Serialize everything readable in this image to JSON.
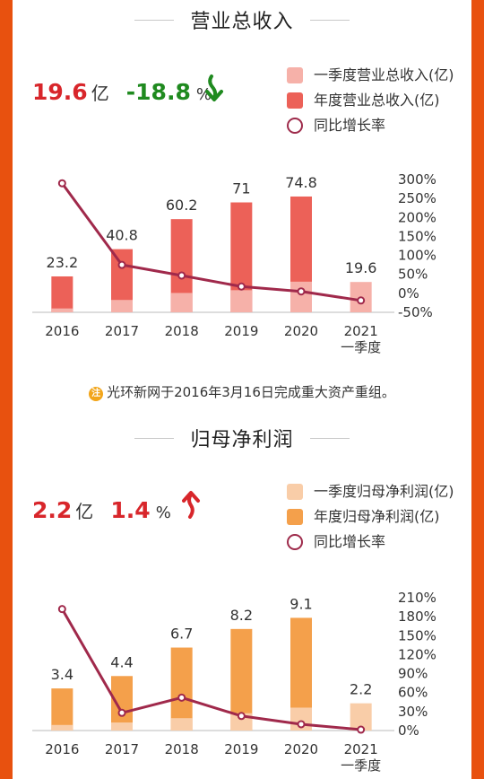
{
  "revenue": {
    "title": "营业总收入",
    "kpi": {
      "value": "19.6",
      "unit": "亿",
      "change": "-18.8",
      "pct": "%",
      "direction": "down"
    },
    "legend": [
      "一季度营业总收入(亿)",
      "年度营业总收入(亿)",
      "同比增长率"
    ],
    "colors": {
      "quarter": "#f6b1a9",
      "annual": "#ec6158",
      "line": "#a0294b",
      "kpi_value": "#d8262b",
      "kpi_change": "#1f8a1f"
    },
    "note": "光环新网于2016年3月16日完成重大资产重组。",
    "note_badge": "注"
  },
  "profit": {
    "title": "归母净利润",
    "kpi": {
      "value": "2.2",
      "unit": "亿",
      "change": "1.4",
      "pct": "%",
      "direction": "up"
    },
    "legend": [
      "一季度归母净利润(亿)",
      "年度归母净利润(亿)",
      "同比增长率"
    ],
    "colors": {
      "quarter": "#f9cda8",
      "annual": "#f4a04b",
      "line": "#a0294b",
      "kpi_value": "#d8262b",
      "kpi_change": "#d8262b"
    }
  },
  "chart_data": [
    {
      "type": "bar",
      "categories": [
        "2016",
        "2017",
        "2018",
        "2019",
        "2020",
        "2021\n一季度"
      ],
      "series": [
        {
          "name": "一季度营业总收入(亿)",
          "values": [
            2.5,
            8.0,
            12.5,
            14.3,
            19.8,
            19.6
          ]
        },
        {
          "name": "年度营业总收入(亿)",
          "values": [
            23.2,
            40.8,
            60.2,
            71,
            74.8,
            null
          ]
        },
        {
          "name": "同比增长率",
          "values": [
            290,
            75,
            47,
            18,
            5,
            -18.8
          ],
          "axis": "right"
        }
      ],
      "data_labels": [
        "23.2",
        "40.8",
        "60.2",
        "71",
        "74.8",
        "19.6"
      ],
      "left_ylim": [
        0,
        80
      ],
      "right_ylim": [
        -50,
        300
      ],
      "right_ticks": [
        "300%",
        "250%",
        "200%",
        "150%",
        "100%",
        "50%",
        "0%",
        "-50%"
      ]
    },
    {
      "type": "bar",
      "categories": [
        "2016",
        "2017",
        "2018",
        "2019",
        "2020",
        "2021\n一季度"
      ],
      "series": [
        {
          "name": "一季度归母净利润(亿)",
          "values": [
            0.45,
            0.65,
            1.0,
            1.4,
            1.85,
            2.2
          ]
        },
        {
          "name": "年度归母净利润(亿)",
          "values": [
            3.4,
            4.4,
            6.7,
            8.2,
            9.1,
            null
          ]
        },
        {
          "name": "同比增长率",
          "values": [
            192,
            28,
            52,
            23,
            10,
            1.4
          ],
          "axis": "right"
        }
      ],
      "data_labels": [
        "3.4",
        "4.4",
        "6.7",
        "8.2",
        "9.1",
        "2.2"
      ],
      "left_ylim": [
        0,
        10
      ],
      "right_ylim": [
        0,
        210
      ],
      "right_ticks": [
        "210%",
        "180%",
        "150%",
        "120%",
        "90%",
        "60%",
        "30%",
        "0%"
      ]
    }
  ]
}
